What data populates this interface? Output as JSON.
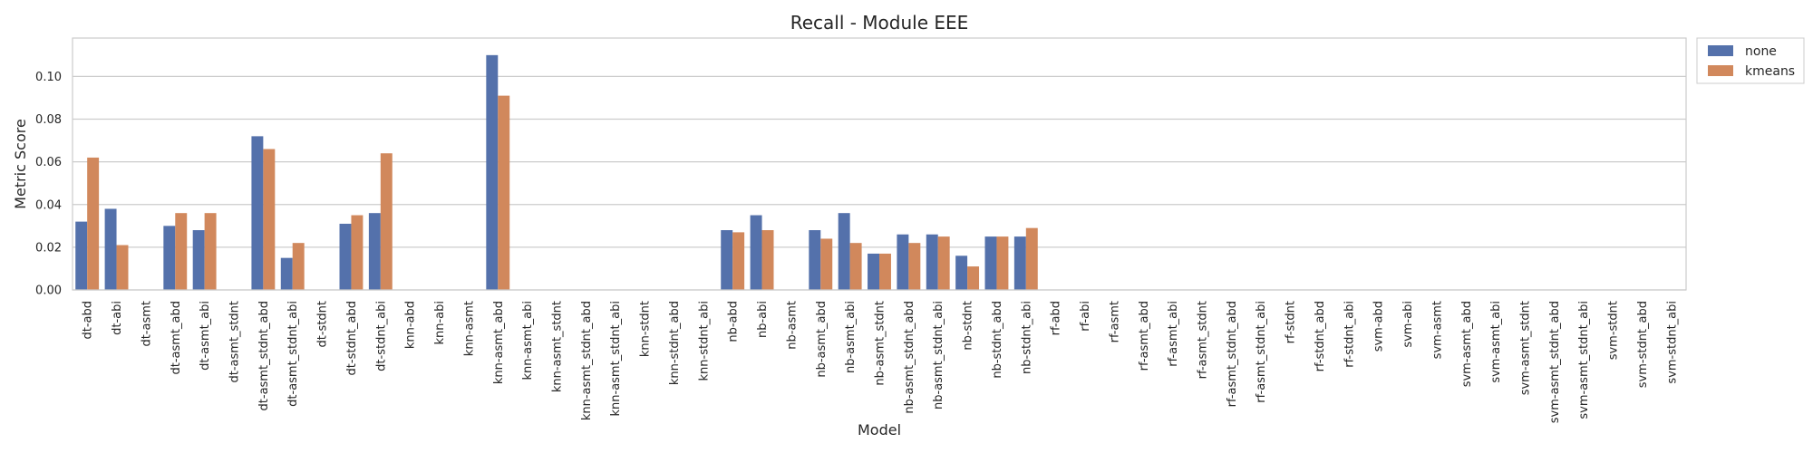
{
  "chart_data": {
    "type": "bar",
    "title": "Recall - Module EEE",
    "xlabel": "Model",
    "ylabel": "Metric Score",
    "ylim": [
      0,
      0.118
    ],
    "yticks": [
      0.0,
      0.02,
      0.04,
      0.06,
      0.08,
      0.1
    ],
    "grid": "horizontal",
    "legend_position": "outside-top-right",
    "categories": [
      "dt-abd",
      "dt-abi",
      "dt-asmt",
      "dt-asmt_abd",
      "dt-asmt_abi",
      "dt-asmt_stdnt",
      "dt-asmt_stdnt_abd",
      "dt-asmt_stdnt_abi",
      "dt-stdnt",
      "dt-stdnt_abd",
      "dt-stdnt_abi",
      "knn-abd",
      "knn-abi",
      "knn-asmt",
      "knn-asmt_abd",
      "knn-asmt_abi",
      "knn-asmt_stdnt",
      "knn-asmt_stdnt_abd",
      "knn-asmt_stdnt_abi",
      "knn-stdnt",
      "knn-stdnt_abd",
      "knn-stdnt_abi",
      "nb-abd",
      "nb-abi",
      "nb-asmt",
      "nb-asmt_abd",
      "nb-asmt_abi",
      "nb-asmt_stdnt",
      "nb-asmt_stdnt_abd",
      "nb-asmt_stdnt_abi",
      "nb-stdnt",
      "nb-stdnt_abd",
      "nb-stdnt_abi",
      "rf-abd",
      "rf-abi",
      "rf-asmt",
      "rf-asmt_abd",
      "rf-asmt_abi",
      "rf-asmt_stdnt",
      "rf-asmt_stdnt_abd",
      "rf-asmt_stdnt_abi",
      "rf-stdnt",
      "rf-stdnt_abd",
      "rf-stdnt_abi",
      "svm-abd",
      "svm-abi",
      "svm-asmt",
      "svm-asmt_abd",
      "svm-asmt_abi",
      "svm-asmt_stdnt",
      "svm-asmt_stdnt_abd",
      "svm-asmt_stdnt_abi",
      "svm-stdnt",
      "svm-stdnt_abd",
      "svm-stdnt_abi"
    ],
    "series": [
      {
        "name": "none",
        "color": "#5471ab",
        "values": [
          0.032,
          0.038,
          0,
          0.03,
          0.028,
          0,
          0.072,
          0.015,
          0,
          0.031,
          0.036,
          0,
          0,
          0,
          0.11,
          0,
          0,
          0,
          0,
          0,
          0,
          0,
          0.028,
          0.035,
          0,
          0.028,
          0.036,
          0.017,
          0.026,
          0.026,
          0.016,
          0.025,
          0.025,
          0,
          0,
          0,
          0,
          0,
          0,
          0,
          0,
          0,
          0,
          0,
          0,
          0,
          0,
          0,
          0,
          0,
          0,
          0,
          0,
          0,
          0
        ]
      },
      {
        "name": "kmeans",
        "color": "#d1885c",
        "values": [
          0.062,
          0.021,
          0,
          0.036,
          0.036,
          0,
          0.066,
          0.022,
          0,
          0.035,
          0.064,
          0,
          0,
          0,
          0.091,
          0,
          0,
          0,
          0,
          0,
          0,
          0,
          0.027,
          0.028,
          0,
          0.024,
          0.022,
          0.017,
          0.022,
          0.025,
          0.011,
          0.025,
          0.029,
          0,
          0,
          0,
          0,
          0,
          0,
          0,
          0,
          0,
          0,
          0,
          0,
          0,
          0,
          0,
          0,
          0,
          0,
          0,
          0,
          0,
          0
        ]
      }
    ]
  }
}
